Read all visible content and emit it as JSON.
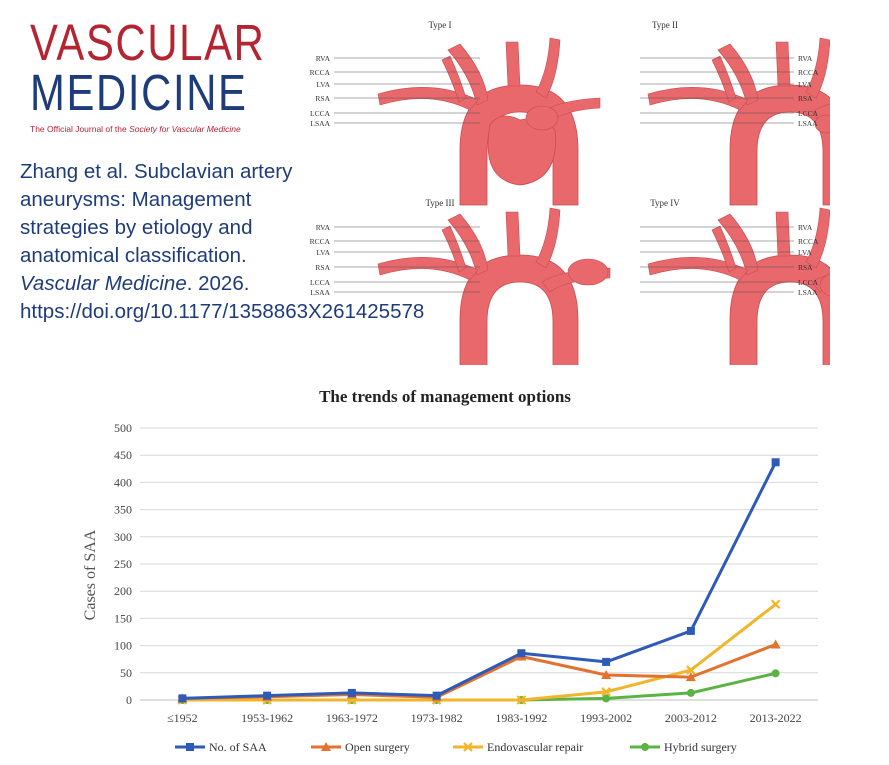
{
  "logo": {
    "line1": "VASCULAR",
    "line2": "MEDICINE",
    "tagline_prefix": "The Official Journal of the ",
    "tagline_society": "Society for Vascular Medicine"
  },
  "citation": {
    "text_before": "Zhang et al. Subclavian artery aneurysms: Management strategies by etiology and anatomical classification. ",
    "journal": "Vascular Medicine",
    "text_after": ". 2026. https://doi.org/10.1177/1358863X261425578"
  },
  "diagrams": {
    "labels_left": [
      "RVA",
      "RCCA",
      "LVA",
      "RSA",
      "LCCA",
      "LSAA"
    ],
    "labels_right": [
      "RVA",
      "RCCA",
      "LVA",
      "RSA",
      "LCCA",
      "LSAA"
    ],
    "types": [
      "Type I",
      "Type II",
      "Type III",
      "Type IV"
    ],
    "artery_color": "#e8686b"
  },
  "chart_data": {
    "type": "line",
    "title": "The trends of management options",
    "xlabel": "",
    "ylabel": "Cases of SAA",
    "categories": [
      "≤1952",
      "1953-1962",
      "1963-1972",
      "1973-1982",
      "1983-1992",
      "1993-2002",
      "2003-2012",
      "2013-2022"
    ],
    "ylim": [
      0,
      500
    ],
    "yticks": [
      0,
      50,
      100,
      150,
      200,
      250,
      300,
      350,
      400,
      450,
      500
    ],
    "grid": true,
    "legend_position": "bottom",
    "series": [
      {
        "name": "No. of SAA",
        "color": "#2e5ab8",
        "marker": "square",
        "values": [
          3,
          8,
          13,
          8,
          86,
          70,
          127,
          437
        ]
      },
      {
        "name": "Open surgery",
        "color": "#e2722e",
        "marker": "triangle",
        "values": [
          3,
          6,
          10,
          5,
          80,
          46,
          42,
          102
        ]
      },
      {
        "name": "Endovascular repair",
        "color": "#f2b42a",
        "marker": "x",
        "values": [
          0,
          0,
          0,
          0,
          0,
          15,
          55,
          176
        ]
      },
      {
        "name": "Hybrid surgery",
        "color": "#5bb344",
        "marker": "circle",
        "values": [
          0,
          0,
          0,
          0,
          0,
          3,
          13,
          49
        ]
      }
    ]
  }
}
